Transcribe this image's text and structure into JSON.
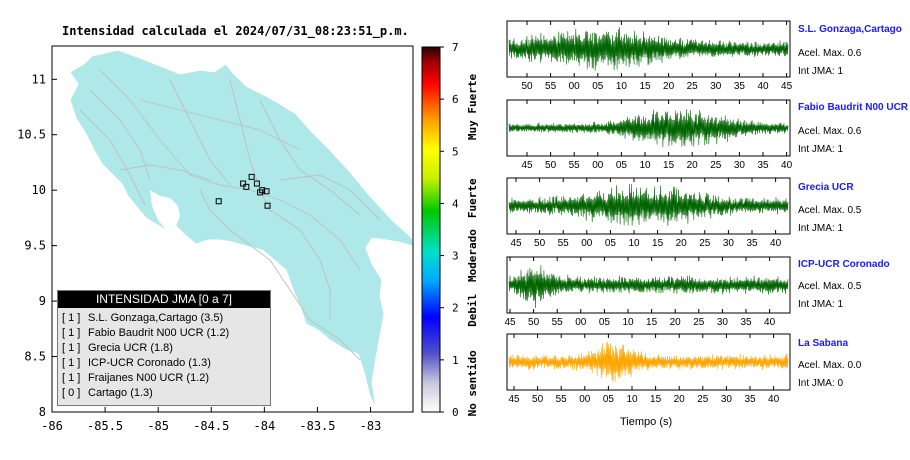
{
  "title": "Intensidad calculada el 2024/07/31_08:23:51_p.m.",
  "chart_data": [
    {
      "type": "map",
      "xlim": [
        -86,
        -82.6
      ],
      "ylim": [
        8,
        11.3
      ],
      "xticks": [
        -86,
        -85.5,
        -85,
        -84.5,
        -84,
        -83.5,
        -83
      ],
      "xtick_labels": [
        "-86",
        "-85.5",
        "-85",
        "-84.5",
        "-84",
        "-83.5",
        "-83"
      ],
      "yticks": [
        8,
        8.5,
        9,
        9.5,
        10,
        10.5,
        11
      ],
      "ytick_labels": [
        "8",
        "8.5",
        "9",
        "9.5",
        "10",
        "10.5",
        "11"
      ],
      "land_color": "#aee8e8",
      "stations": [
        {
          "lon": -84.12,
          "lat": 10.12
        },
        {
          "lon": -84.07,
          "lat": 10.06
        },
        {
          "lon": -84.17,
          "lat": 10.03
        },
        {
          "lon": -84.2,
          "lat": 10.06
        },
        {
          "lon": -84.02,
          "lat": 10.0
        },
        {
          "lon": -83.98,
          "lat": 9.99
        },
        {
          "lon": -84.04,
          "lat": 9.98
        },
        {
          "lon": -83.97,
          "lat": 9.86
        },
        {
          "lon": -84.43,
          "lat": 9.9
        }
      ]
    },
    {
      "type": "colorbar",
      "range": [
        0,
        7
      ],
      "ticks": [
        "0",
        "1",
        "2",
        "3",
        "4",
        "5",
        "6",
        "7"
      ],
      "category_labels": [
        "No sentido",
        "Debil",
        "Moderado",
        "Fuerte",
        "Muy Fuerte"
      ]
    },
    {
      "type": "waveform",
      "xlabel": "Tiempo (s)",
      "traces": [
        {
          "name": "S.L. Gonzaga,Cartago",
          "acel": "Acel. Max. 0.6",
          "jma": "Int JMA: 1",
          "color": "#006400",
          "ticks": [
            "50",
            "55",
            "00",
            "05",
            "10",
            "15",
            "20",
            "25",
            "30",
            "35",
            "40",
            "45"
          ]
        },
        {
          "name": "Fabio Baudrit N00 UCR",
          "acel": "Acel. Max. 0.6",
          "jma": "Int JMA: 1",
          "color": "#006400",
          "ticks": [
            "45",
            "50",
            "55",
            "00",
            "05",
            "10",
            "15",
            "20",
            "25",
            "30",
            "35",
            "40"
          ]
        },
        {
          "name": "Grecia UCR",
          "acel": "Acel. Max. 0.5",
          "jma": "Int JMA: 1",
          "color": "#006400",
          "ticks": [
            "45",
            "50",
            "55",
            "00",
            "05",
            "10",
            "15",
            "20",
            "25",
            "30",
            "35",
            "40"
          ]
        },
        {
          "name": "ICP-UCR Coronado",
          "acel": "Acel. Max. 0.5",
          "jma": "Int JMA: 1",
          "color": "#006400",
          "ticks": [
            "45",
            "50",
            "55",
            "00",
            "05",
            "10",
            "15",
            "20",
            "25",
            "30",
            "35",
            "40"
          ]
        },
        {
          "name": "La Sabana",
          "acel": "Acel. Max. 0.0",
          "jma": "Int JMA: 0",
          "color": "#ffa500",
          "ticks": [
            "45",
            "50",
            "55",
            "00",
            "05",
            "10",
            "15",
            "20",
            "25",
            "30",
            "35",
            "40"
          ]
        }
      ]
    }
  ],
  "legend": {
    "header": "INTENSIDAD JMA [0 a 7]",
    "items": [
      {
        "int": "[ 1 ]",
        "text": "S.L. Gonzaga,Cartago (3.5)"
      },
      {
        "int": "[ 1 ]",
        "text": "Fabio Baudrit N00 UCR (1.2)"
      },
      {
        "int": "[ 1 ]",
        "text": "Grecia UCR (1.8)"
      },
      {
        "int": "[ 1 ]",
        "text": "ICP-UCR Coronado (1.3)"
      },
      {
        "int": "[ 1 ]",
        "text": "Fraijanes N00 UCR (1.2)"
      },
      {
        "int": "[ 0 ]",
        "text": "Cartago (1.3)"
      }
    ]
  }
}
